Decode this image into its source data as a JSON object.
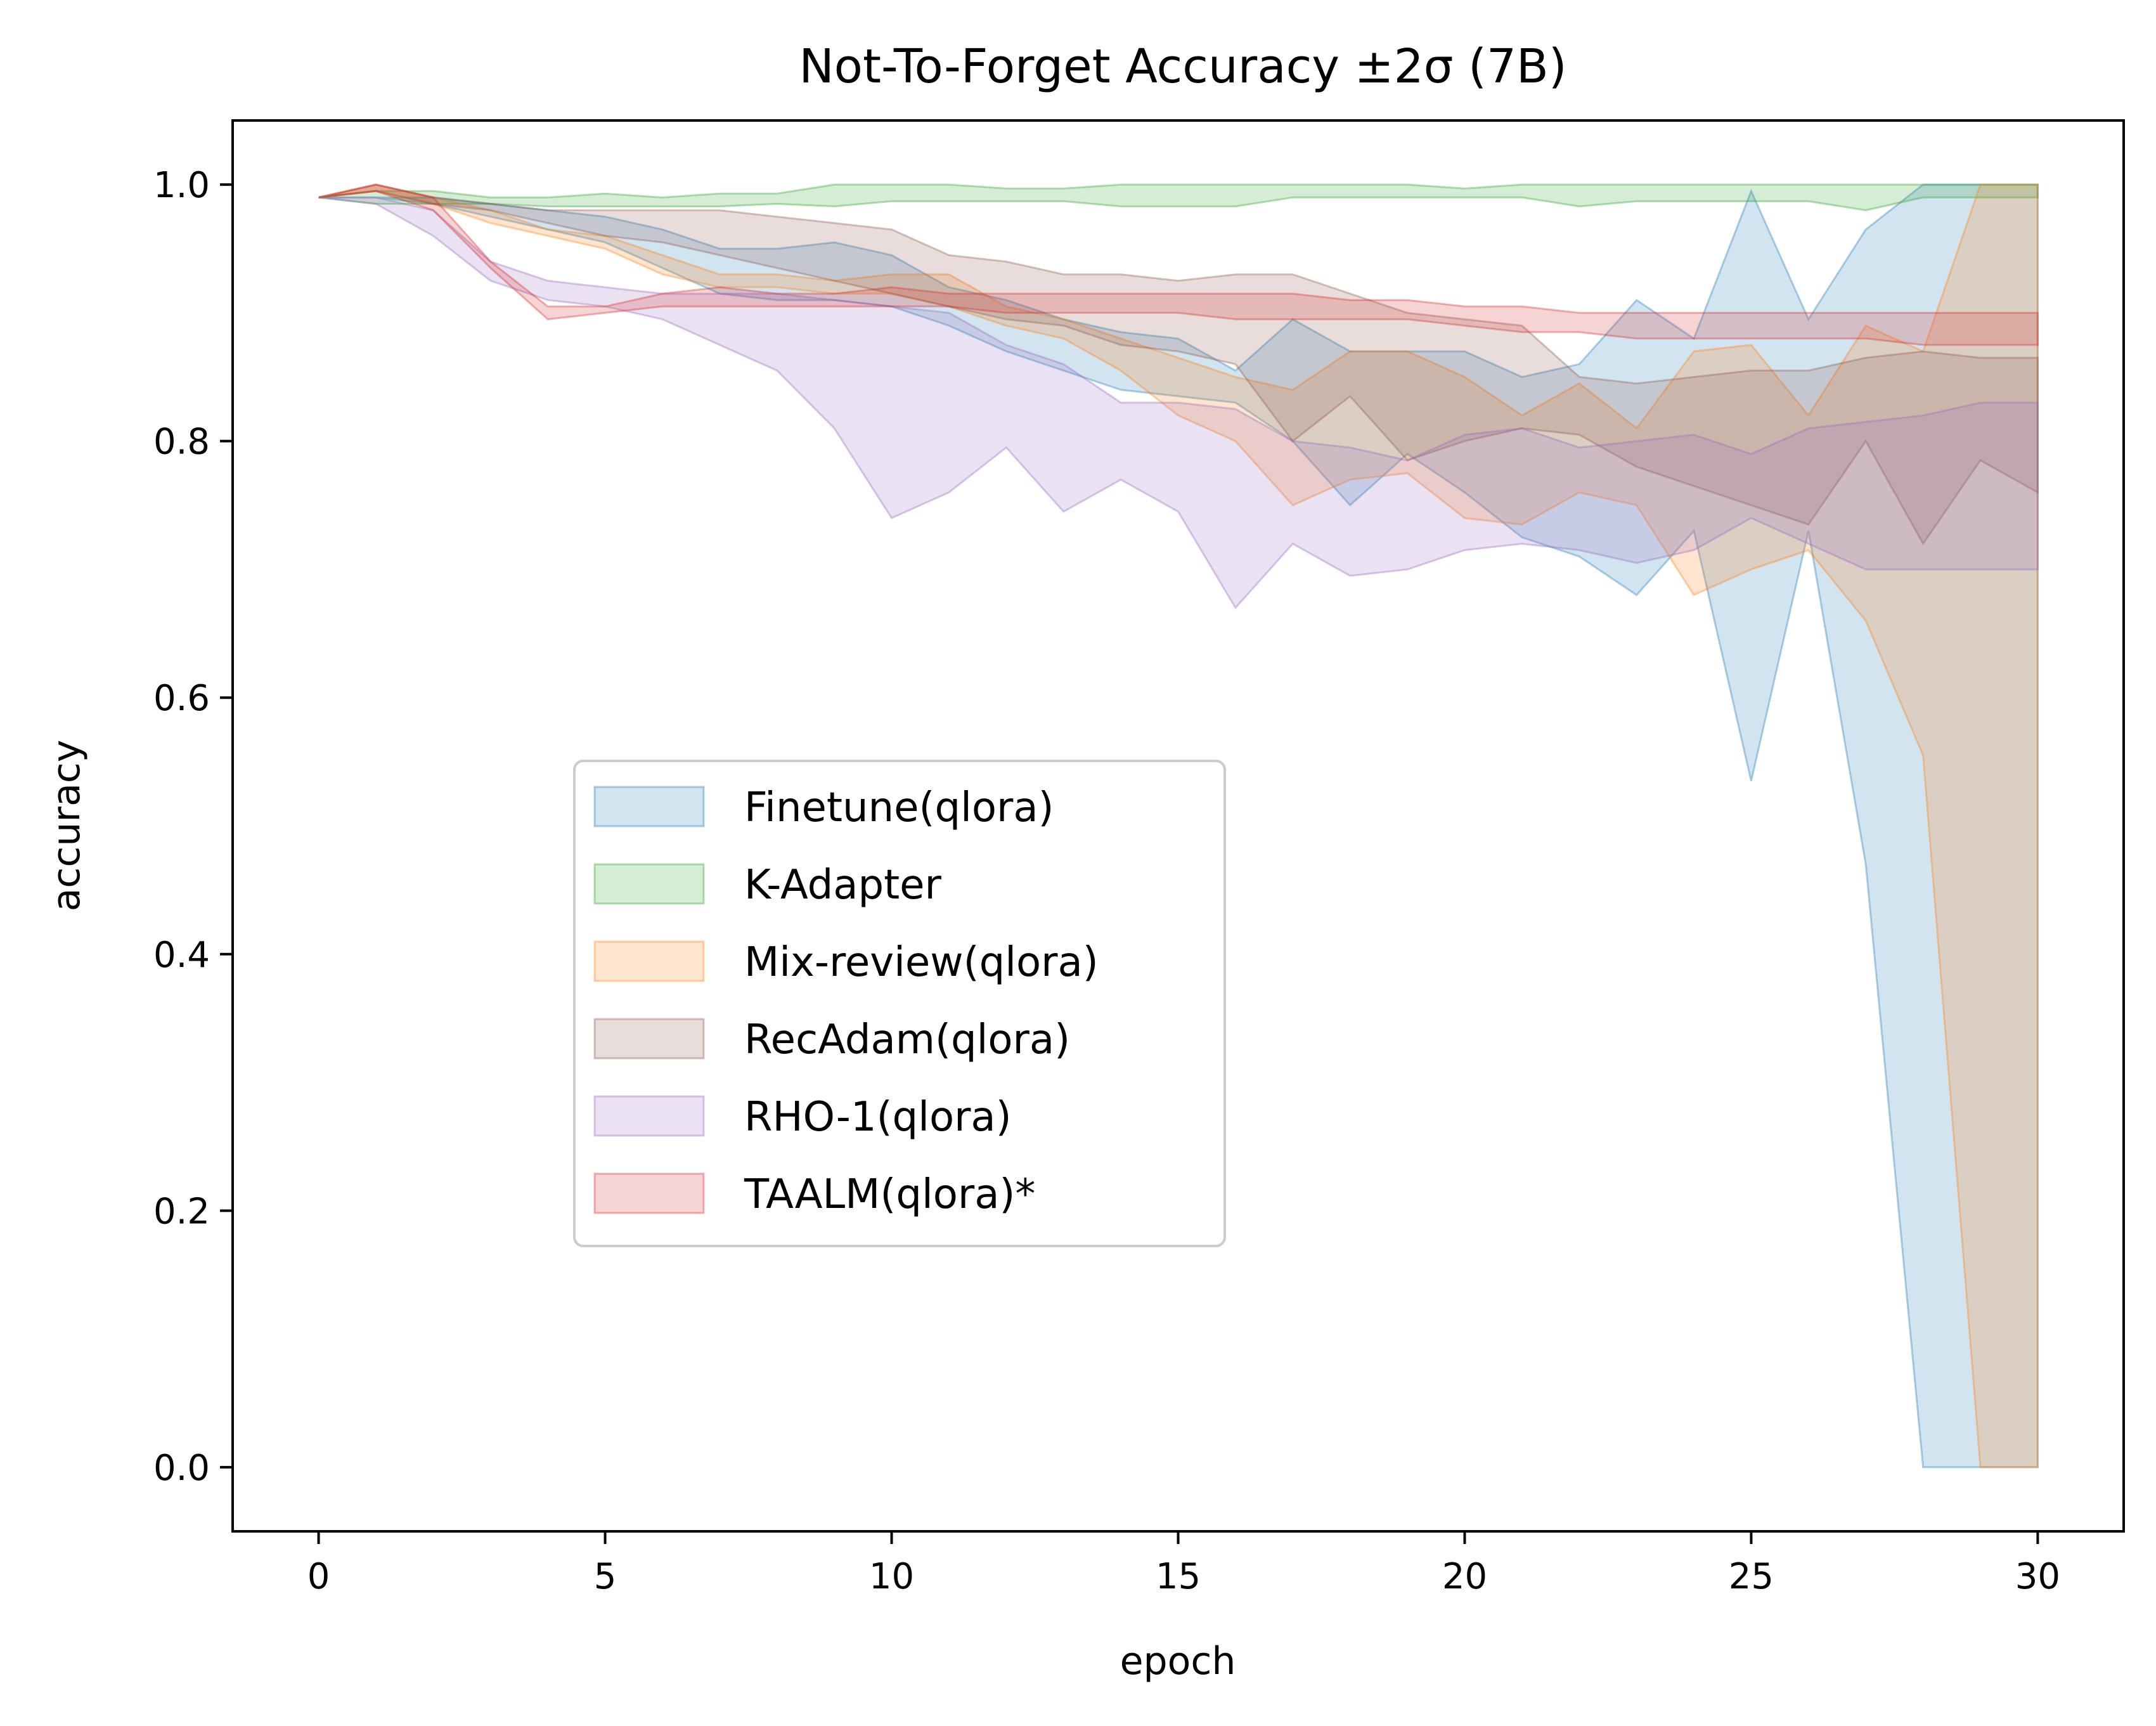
{
  "chart_data": {
    "type": "area",
    "title": "Not-To-Forget Accuracy ±2σ (7B)",
    "xlabel": "epoch",
    "ylabel": "accuracy",
    "xlim": [
      -1.5,
      31.5
    ],
    "ylim": [
      -0.05,
      1.05
    ],
    "x_ticks": [
      0,
      5,
      10,
      15,
      20,
      25,
      30
    ],
    "x_tick_labels": [
      "0",
      "5",
      "10",
      "15",
      "20",
      "25",
      "30"
    ],
    "y_ticks": [
      0.0,
      0.2,
      0.4,
      0.6,
      0.8,
      1.0
    ],
    "y_tick_labels": [
      "0.0",
      "0.2",
      "0.4",
      "0.6",
      "0.8",
      "1.0"
    ],
    "grid": false,
    "legend_position": "center-left",
    "x": [
      0,
      1,
      2,
      3,
      4,
      5,
      6,
      7,
      8,
      9,
      10,
      11,
      12,
      13,
      14,
      15,
      16,
      17,
      18,
      19,
      20,
      21,
      22,
      23,
      24,
      25,
      26,
      27,
      28,
      29,
      30
    ],
    "series": [
      {
        "name": "Finetune(qlora)",
        "color": "#1f77b4",
        "upper": [
          0.99,
          0.99,
          0.99,
          0.985,
          0.98,
          0.975,
          0.965,
          0.95,
          0.95,
          0.955,
          0.945,
          0.92,
          0.91,
          0.895,
          0.885,
          0.88,
          0.855,
          0.895,
          0.87,
          0.87,
          0.87,
          0.85,
          0.86,
          0.91,
          0.88,
          0.995,
          0.895,
          0.965,
          1.0,
          1.0,
          1.0
        ],
        "lower": [
          0.99,
          0.99,
          0.985,
          0.975,
          0.965,
          0.955,
          0.935,
          0.915,
          0.91,
          0.91,
          0.905,
          0.89,
          0.87,
          0.855,
          0.84,
          0.835,
          0.83,
          0.8,
          0.75,
          0.79,
          0.76,
          0.725,
          0.71,
          0.68,
          0.73,
          0.535,
          0.73,
          0.47,
          0.0,
          0.0,
          0.0
        ]
      },
      {
        "name": "K-Adapter",
        "color": "#2ca02c",
        "upper": [
          0.99,
          0.995,
          0.995,
          0.99,
          0.99,
          0.993,
          0.99,
          0.993,
          0.993,
          1.0,
          1.0,
          1.0,
          0.997,
          0.997,
          1.0,
          1.0,
          1.0,
          1.0,
          1.0,
          1.0,
          0.997,
          1.0,
          1.0,
          1.0,
          1.0,
          1.0,
          1.0,
          1.0,
          1.0,
          1.0,
          1.0
        ],
        "lower": [
          0.99,
          0.985,
          0.985,
          0.985,
          0.983,
          0.983,
          0.983,
          0.983,
          0.985,
          0.983,
          0.987,
          0.987,
          0.987,
          0.987,
          0.983,
          0.983,
          0.983,
          0.99,
          0.99,
          0.99,
          0.99,
          0.99,
          0.983,
          0.987,
          0.987,
          0.987,
          0.987,
          0.98,
          0.99,
          0.99,
          0.99
        ]
      },
      {
        "name": "Mix-review(qlora)",
        "color": "#ff7f0e",
        "upper": [
          0.99,
          1.0,
          0.99,
          0.98,
          0.965,
          0.96,
          0.945,
          0.93,
          0.93,
          0.925,
          0.93,
          0.93,
          0.905,
          0.895,
          0.88,
          0.865,
          0.85,
          0.84,
          0.87,
          0.87,
          0.85,
          0.82,
          0.845,
          0.81,
          0.87,
          0.875,
          0.82,
          0.89,
          0.87,
          1.0,
          1.0
        ],
        "lower": [
          0.99,
          0.995,
          0.985,
          0.97,
          0.96,
          0.95,
          0.93,
          0.92,
          0.92,
          0.915,
          0.915,
          0.905,
          0.89,
          0.88,
          0.855,
          0.82,
          0.8,
          0.75,
          0.77,
          0.775,
          0.74,
          0.735,
          0.76,
          0.75,
          0.68,
          0.7,
          0.715,
          0.66,
          0.555,
          0.0,
          0.0
        ]
      },
      {
        "name": "RecAdam(qlora)",
        "color": "#8c564b",
        "upper": [
          0.99,
          1.0,
          0.99,
          0.985,
          0.98,
          0.98,
          0.98,
          0.98,
          0.975,
          0.97,
          0.965,
          0.945,
          0.94,
          0.93,
          0.93,
          0.925,
          0.93,
          0.93,
          0.915,
          0.9,
          0.895,
          0.89,
          0.85,
          0.845,
          0.85,
          0.855,
          0.855,
          0.865,
          0.87,
          0.865,
          0.865
        ],
        "lower": [
          0.99,
          0.995,
          0.985,
          0.98,
          0.97,
          0.96,
          0.955,
          0.945,
          0.935,
          0.925,
          0.915,
          0.905,
          0.895,
          0.89,
          0.875,
          0.87,
          0.86,
          0.8,
          0.835,
          0.785,
          0.8,
          0.81,
          0.805,
          0.78,
          0.765,
          0.75,
          0.735,
          0.8,
          0.72,
          0.785,
          0.76
        ]
      },
      {
        "name": "RHO-1(qlora)",
        "color": "#9467bd",
        "upper": [
          0.99,
          0.99,
          0.98,
          0.94,
          0.925,
          0.92,
          0.915,
          0.915,
          0.915,
          0.91,
          0.905,
          0.9,
          0.875,
          0.86,
          0.83,
          0.83,
          0.825,
          0.8,
          0.795,
          0.785,
          0.805,
          0.81,
          0.795,
          0.8,
          0.805,
          0.79,
          0.81,
          0.815,
          0.82,
          0.83,
          0.83
        ],
        "lower": [
          0.99,
          0.985,
          0.96,
          0.925,
          0.91,
          0.905,
          0.895,
          0.875,
          0.855,
          0.81,
          0.74,
          0.76,
          0.795,
          0.745,
          0.77,
          0.745,
          0.67,
          0.72,
          0.695,
          0.7,
          0.715,
          0.72,
          0.715,
          0.705,
          0.715,
          0.74,
          0.72,
          0.7,
          0.7,
          0.7,
          0.7
        ]
      },
      {
        "name": "TAALM(qlora)*",
        "color": "#d62728",
        "upper": [
          0.99,
          1.0,
          0.99,
          0.94,
          0.905,
          0.905,
          0.915,
          0.92,
          0.915,
          0.915,
          0.92,
          0.915,
          0.915,
          0.915,
          0.915,
          0.915,
          0.915,
          0.915,
          0.91,
          0.91,
          0.905,
          0.905,
          0.9,
          0.9,
          0.9,
          0.9,
          0.9,
          0.9,
          0.9,
          0.9,
          0.9
        ],
        "lower": [
          0.99,
          0.995,
          0.98,
          0.935,
          0.895,
          0.9,
          0.905,
          0.905,
          0.905,
          0.905,
          0.905,
          0.905,
          0.9,
          0.9,
          0.9,
          0.9,
          0.895,
          0.895,
          0.895,
          0.895,
          0.89,
          0.885,
          0.885,
          0.88,
          0.88,
          0.88,
          0.88,
          0.88,
          0.875,
          0.875,
          0.875
        ]
      }
    ]
  }
}
